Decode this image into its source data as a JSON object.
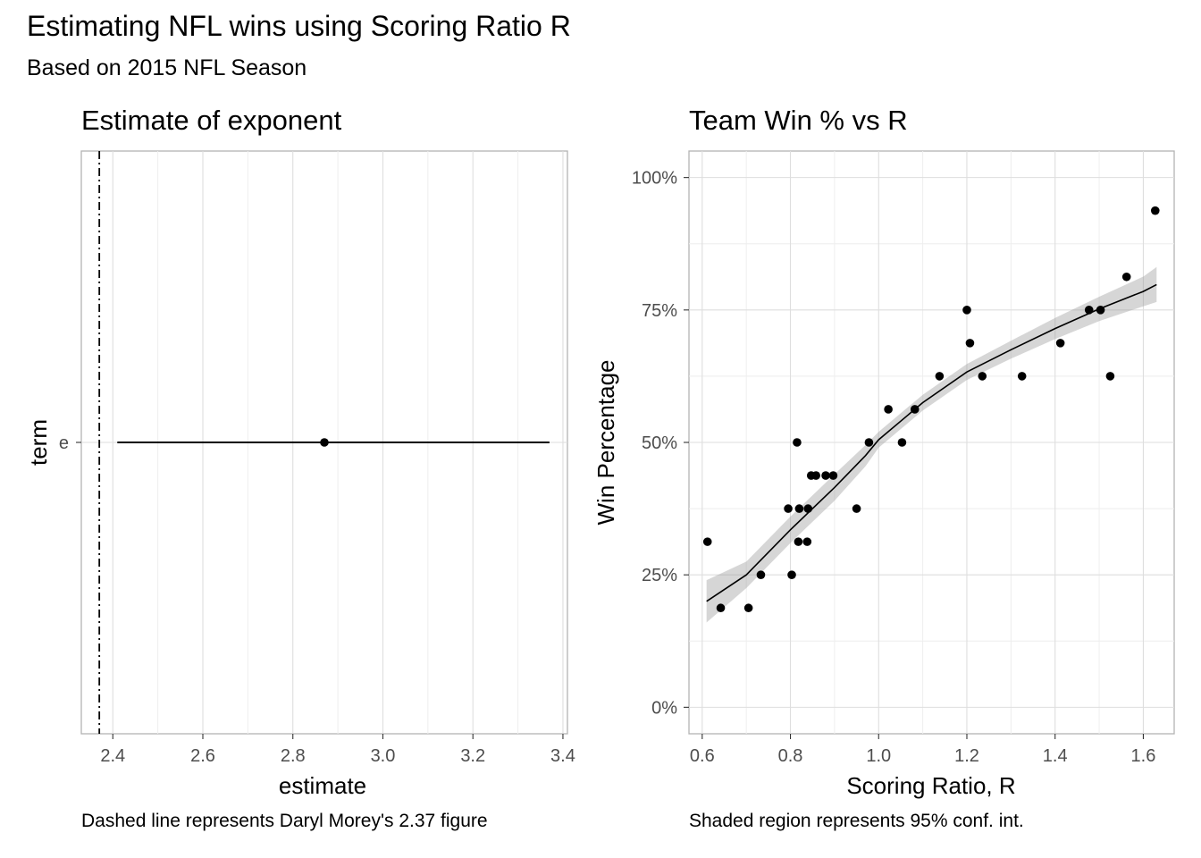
{
  "title": "Estimating NFL wins using Scoring Ratio R",
  "subtitle": "Based on 2015 NFL Season",
  "chart_data": [
    {
      "type": "scatter",
      "title": "Estimate of exponent",
      "xlabel": "estimate",
      "ylabel": "term",
      "caption": "Dashed line represents Daryl Morey's 2.37 figure",
      "xlim": [
        2.33,
        3.41
      ],
      "x_ticks": [
        "2.4",
        "2.6",
        "2.8",
        "3.0",
        "3.2",
        "3.4"
      ],
      "categories": [
        "e"
      ],
      "points": [
        {
          "term": "e",
          "estimate": 2.87,
          "low": 2.41,
          "high": 3.37
        }
      ],
      "reference_line": {
        "x": 2.37,
        "style": "dashed"
      },
      "grid": true
    },
    {
      "type": "scatter",
      "title": "Team Win % vs R",
      "xlabel": "Scoring Ratio, R",
      "ylabel": "Win Percentage",
      "caption": "Shaded region represents 95% conf. int.",
      "xlim": [
        0.57,
        1.67
      ],
      "ylim": [
        -0.05,
        1.05
      ],
      "x_ticks": [
        "0.6",
        "0.8",
        "1.0",
        "1.2",
        "1.4",
        "1.6"
      ],
      "y_ticks": [
        "0%",
        "25%",
        "50%",
        "75%",
        "100%"
      ],
      "grid": true,
      "points": [
        {
          "x": 0.612,
          "y": 0.3125
        },
        {
          "x": 0.642,
          "y": 0.1875
        },
        {
          "x": 0.705,
          "y": 0.1875
        },
        {
          "x": 0.733,
          "y": 0.25
        },
        {
          "x": 0.795,
          "y": 0.375
        },
        {
          "x": 0.803,
          "y": 0.25
        },
        {
          "x": 0.815,
          "y": 0.5
        },
        {
          "x": 0.818,
          "y": 0.3125
        },
        {
          "x": 0.82,
          "y": 0.375
        },
        {
          "x": 0.838,
          "y": 0.3125
        },
        {
          "x": 0.84,
          "y": 0.375
        },
        {
          "x": 0.847,
          "y": 0.4375
        },
        {
          "x": 0.858,
          "y": 0.4375
        },
        {
          "x": 0.88,
          "y": 0.4375
        },
        {
          "x": 0.897,
          "y": 0.4375
        },
        {
          "x": 0.95,
          "y": 0.375
        },
        {
          "x": 0.978,
          "y": 0.5
        },
        {
          "x": 1.022,
          "y": 0.5625
        },
        {
          "x": 1.053,
          "y": 0.5
        },
        {
          "x": 1.082,
          "y": 0.5625
        },
        {
          "x": 1.138,
          "y": 0.625
        },
        {
          "x": 1.2,
          "y": 0.75
        },
        {
          "x": 1.207,
          "y": 0.6875
        },
        {
          "x": 1.235,
          "y": 0.625
        },
        {
          "x": 1.325,
          "y": 0.625
        },
        {
          "x": 1.412,
          "y": 0.6875
        },
        {
          "x": 1.477,
          "y": 0.75
        },
        {
          "x": 1.503,
          "y": 0.75
        },
        {
          "x": 1.525,
          "y": 0.625
        },
        {
          "x": 1.562,
          "y": 0.8125
        },
        {
          "x": 1.627,
          "y": 0.9375
        }
      ],
      "fit": {
        "x": [
          0.61,
          0.7,
          0.8,
          0.9,
          0.97,
          1.0,
          1.1,
          1.2,
          1.3,
          1.4,
          1.5,
          1.6,
          1.63
        ],
        "y": [
          0.2,
          0.25,
          0.335,
          0.415,
          0.475,
          0.505,
          0.575,
          0.633,
          0.675,
          0.715,
          0.752,
          0.785,
          0.798
        ],
        "low": [
          0.16,
          0.225,
          0.31,
          0.39,
          0.455,
          0.49,
          0.56,
          0.618,
          0.658,
          0.695,
          0.729,
          0.757,
          0.765
        ],
        "high": [
          0.24,
          0.275,
          0.36,
          0.44,
          0.495,
          0.52,
          0.59,
          0.648,
          0.692,
          0.735,
          0.775,
          0.813,
          0.831
        ]
      }
    }
  ]
}
